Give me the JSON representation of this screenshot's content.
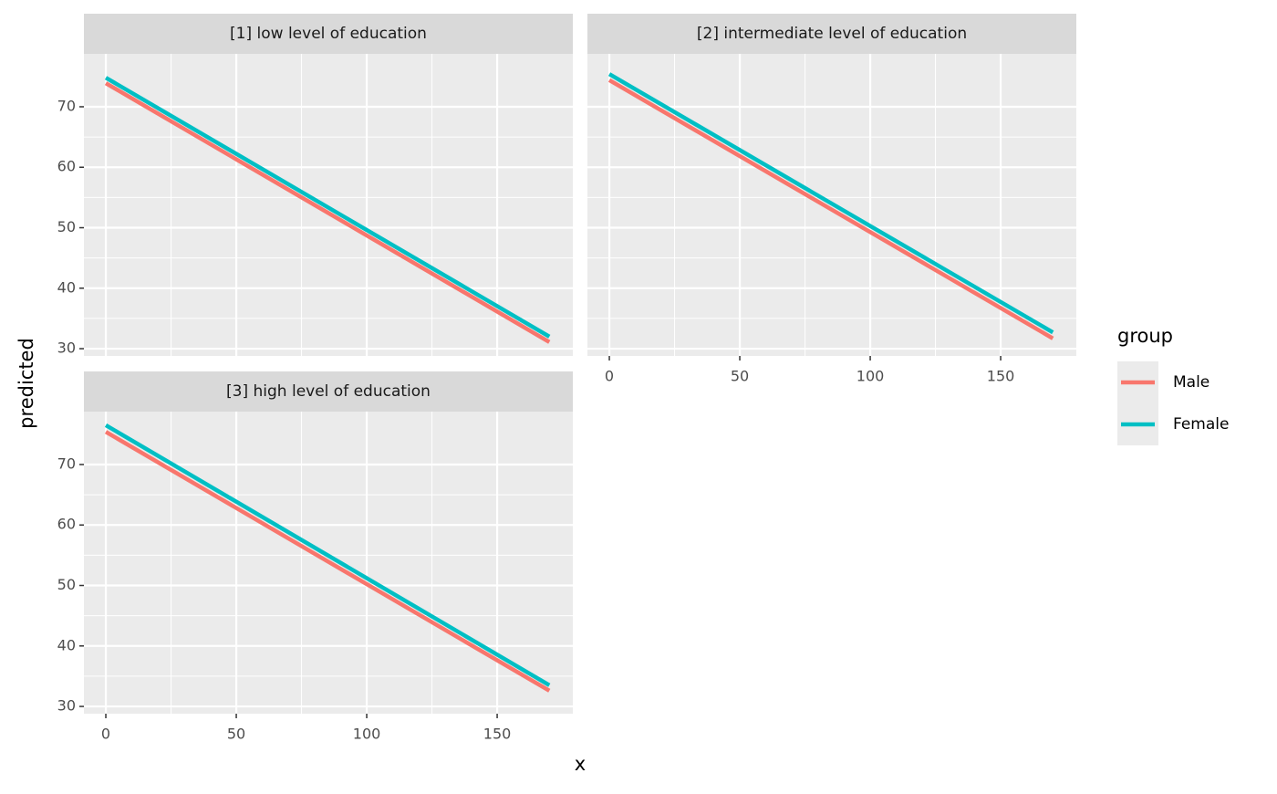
{
  "labels": {
    "x": "x",
    "y": "predicted",
    "legend_title": "group"
  },
  "chart_data": [
    {
      "type": "line",
      "title": "[1] low level of education",
      "x": [
        0,
        170
      ],
      "series": [
        {
          "name": "Male",
          "color": "#f8766d",
          "values": [
            73.9,
            31.1
          ]
        },
        {
          "name": "Female",
          "color": "#00bfc4",
          "values": [
            74.8,
            32.0
          ]
        }
      ],
      "xlim": [
        -8.4,
        179
      ],
      "ylim": [
        28.8,
        78.75
      ],
      "xticks": [
        0,
        50,
        100,
        150
      ],
      "yticks": [
        30,
        40,
        50,
        60,
        70
      ],
      "grid": true
    },
    {
      "type": "line",
      "title": "[2] intermediate level of education",
      "x": [
        0,
        170
      ],
      "series": [
        {
          "name": "Male",
          "color": "#f8766d",
          "values": [
            74.4,
            31.7
          ]
        },
        {
          "name": "Female",
          "color": "#00bfc4",
          "values": [
            75.4,
            32.7
          ]
        }
      ],
      "xlim": [
        -8.4,
        179
      ],
      "ylim": [
        28.8,
        78.75
      ],
      "xticks": [
        0,
        50,
        100,
        150
      ],
      "yticks": [
        30,
        40,
        50,
        60,
        70
      ],
      "grid": true
    },
    {
      "type": "line",
      "title": "[3] high level of education",
      "x": [
        0,
        170
      ],
      "series": [
        {
          "name": "Male",
          "color": "#f8766d",
          "values": [
            75.4,
            32.6
          ]
        },
        {
          "name": "Female",
          "color": "#00bfc4",
          "values": [
            76.5,
            33.5
          ]
        }
      ],
      "xlim": [
        -8.4,
        179
      ],
      "ylim": [
        28.8,
        78.75
      ],
      "xticks": [
        0,
        50,
        100,
        150
      ],
      "yticks": [
        30,
        40,
        50,
        60,
        70
      ],
      "grid": true
    }
  ]
}
